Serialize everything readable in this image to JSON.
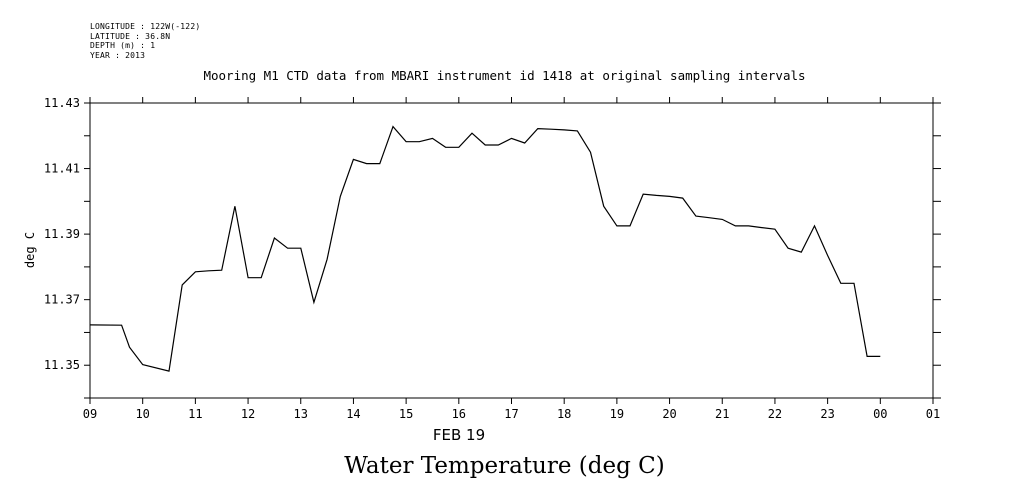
{
  "metadata": {
    "longitude": "LONGITUDE : 122W(-122)",
    "latitude": "LATITUDE : 36.8N",
    "depth": "DEPTH (m) : 1",
    "year": "YEAR : 2013"
  },
  "chart_data": {
    "type": "line",
    "title": "Mooring M1 CTD data from MBARI instrument id 1418 at original sampling intervals",
    "subtitle": "Water Temperature (deg C)",
    "ylabel": "deg C",
    "xlabel": "FEB 19",
    "x_unit": "hour of day",
    "xlim": [
      9,
      25
    ],
    "ylim": [
      11.34,
      11.43
    ],
    "x_tick_labels": [
      "09",
      "10",
      "11",
      "12",
      "13",
      "14",
      "15",
      "16",
      "17",
      "18",
      "19",
      "20",
      "21",
      "22",
      "23",
      "00",
      "01"
    ],
    "y_tick_labels": [
      "11.35",
      "11.37",
      "11.39",
      "11.41",
      "11.43"
    ],
    "y_ticks": [
      11.35,
      11.37,
      11.39,
      11.41,
      11.43
    ],
    "grid": false,
    "series": [
      {
        "name": "",
        "color": "#000000",
        "x": [
          9.0,
          9.6,
          9.75,
          10.0,
          10.5,
          10.75,
          11.0,
          11.25,
          11.5,
          11.75,
          12.0,
          12.25,
          12.5,
          12.75,
          13.0,
          13.25,
          13.5,
          13.75,
          14.0,
          14.25,
          14.5,
          14.75,
          15.0,
          15.25,
          15.5,
          15.75,
          16.0,
          16.25,
          16.5,
          16.75,
          17.0,
          17.25,
          17.5,
          17.75,
          18.0,
          18.25,
          18.5,
          18.75,
          19.0,
          19.25,
          19.5,
          19.75,
          20.0,
          20.25,
          20.5,
          20.75,
          21.0,
          21.25,
          21.5,
          21.75,
          22.0,
          22.25,
          22.5,
          22.75,
          23.0,
          23.25,
          23.5,
          23.75,
          24.0
        ],
        "y": [
          11.3623,
          11.3622,
          11.3555,
          11.3502,
          11.3482,
          11.3745,
          11.3785,
          11.3788,
          11.379,
          11.3985,
          11.3767,
          11.3767,
          11.3888,
          11.3857,
          11.3857,
          11.3692,
          11.3823,
          11.4015,
          11.4128,
          11.4115,
          11.4115,
          11.4228,
          11.4182,
          11.4182,
          11.4192,
          11.4165,
          11.4165,
          11.4208,
          11.4172,
          11.4172,
          11.4192,
          11.4178,
          11.4222,
          11.422,
          11.4218,
          11.4215,
          11.415,
          11.3985,
          11.3925,
          11.3925,
          11.4022,
          11.4018,
          11.4015,
          11.401,
          11.3955,
          11.395,
          11.3945,
          11.3925,
          11.3925,
          11.392,
          11.3915,
          11.3857,
          11.3845,
          11.3925,
          11.3835,
          11.375,
          11.375,
          11.3527,
          11.3527
        ]
      }
    ]
  }
}
